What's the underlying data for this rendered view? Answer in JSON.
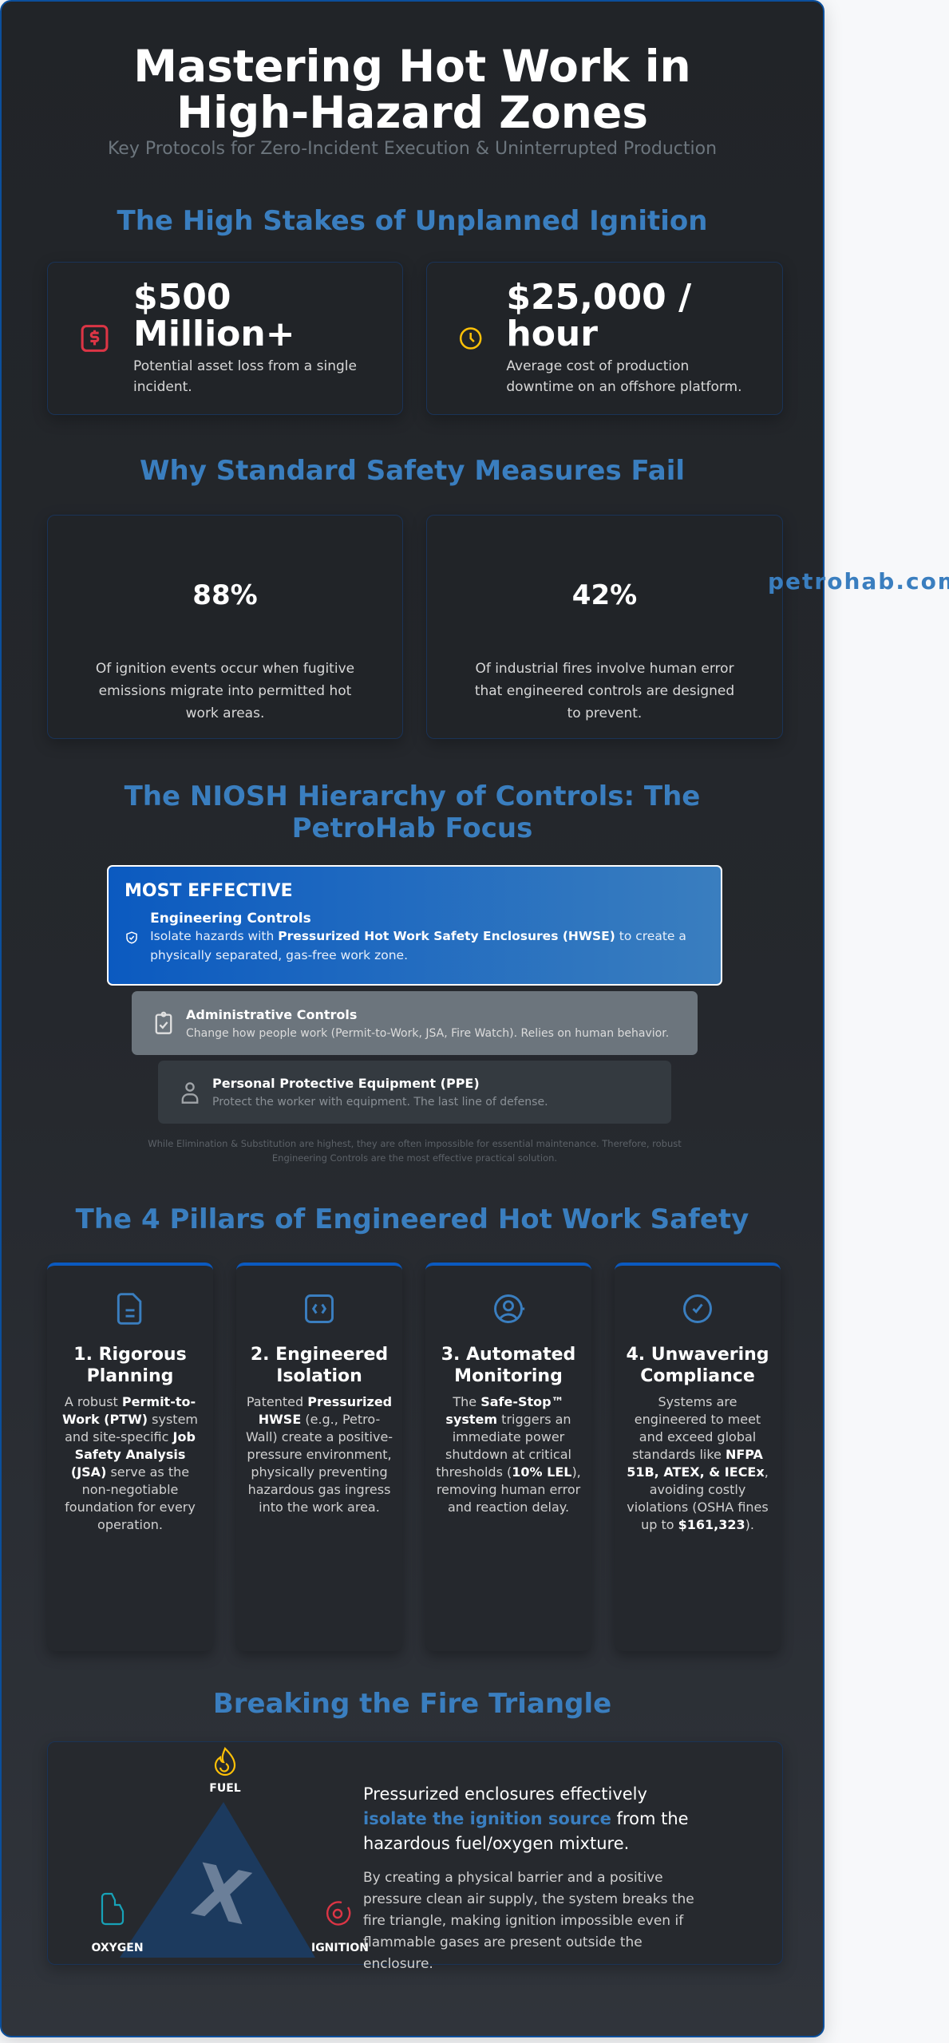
{
  "header": {
    "title": "Mastering Hot Work in High-Hazard Zones",
    "subtitle": "Key Protocols for Zero-Incident Execution & Uninterrupted Production"
  },
  "stakes": {
    "heading": "The High Stakes of Unplanned Ignition",
    "cards": [
      {
        "icon": "dollar-icon",
        "value": "$500 Million+",
        "desc": "Potential asset loss from a single incident.",
        "color": "#dc3545"
      },
      {
        "icon": "clock-icon",
        "value": "$25,000 / hour",
        "desc": "Average cost of production downtime on an offshore platform.",
        "color": "#ffc107"
      }
    ]
  },
  "fail": {
    "heading": "Why Standard Safety Measures Fail",
    "cards": [
      {
        "value": "88%",
        "desc": "Of ignition events occur when fugitive emissions migrate into permitted hot work areas."
      },
      {
        "value": "42%",
        "desc": "Of industrial fires involve human error that engineered controls are designed to prevent."
      }
    ]
  },
  "brand": "petrohab.com",
  "hierarchy": {
    "heading": "The NIOSH Hierarchy of Controls: The PetroHab Focus",
    "top_label": "MOST EFFECTIVE",
    "engineering": {
      "title": "Engineering Controls",
      "pre": "Isolate hazards with ",
      "bold": "Pressurized Hot Work Safety Enclosures (HWSE)",
      "post": " to create a physically separated, gas-free work zone."
    },
    "admin": {
      "title": "Administrative Controls",
      "desc": "Change how people work (Permit-to-Work, JSA, Fire Watch). Relies on human behavior."
    },
    "ppe": {
      "title": "Personal Protective Equipment (PPE)",
      "desc": "Protect the worker with equipment. The last line of defense."
    },
    "note": "While Elimination & Substitution are highest, they are often impossible for essential maintenance. Therefore, robust Engineering Controls are the most effective practical solution."
  },
  "pillars": {
    "heading": "The 4 Pillars of Engineered Hot Work Safety",
    "items": [
      {
        "icon": "document-icon",
        "title": "1. Rigorous Planning",
        "parts": [
          "A robust ",
          "Permit-to-Work (PTW)",
          " system and site-specific ",
          "Job Safety Analysis (JSA)",
          " serve as the non-negotiable foundation for every operation."
        ]
      },
      {
        "icon": "code-box-icon",
        "title": "2. Engineered Isolation",
        "parts": [
          "Patented ",
          "Pressurized HWSE",
          " (e.g., Petro-Wall) create a positive-pressure environment, physically preventing hazardous gas ingress into the work area.",
          "",
          ""
        ]
      },
      {
        "icon": "user-monitor-icon",
        "title": "3. Automated Monitoring",
        "parts": [
          "The ",
          "Safe-Stop™ system",
          " triggers an immediate power shutdown at critical thresholds (",
          "10% LEL",
          "), removing human error and reaction delay."
        ]
      },
      {
        "icon": "check-circle-icon",
        "title": "4. Unwavering Compliance",
        "parts": [
          "Systems are engineered to meet and exceed global standards like ",
          "NFPA 51B, ATEX, & IECEx",
          ", avoiding costly violations (OSHA fines up to ",
          "$161,323",
          "). "
        ]
      }
    ]
  },
  "triangle": {
    "heading": "Breaking the Fire Triangle",
    "fuel": "FUEL",
    "oxygen": "OXYGEN",
    "ignition": "IGNITION",
    "mark": "X",
    "lead_pre": "Pressurized enclosures effectively ",
    "lead_hl": "isolate the ignition source",
    "lead_post": " from the hazardous fuel/oxygen mixture.",
    "body": "By creating a physical barrier and a positive pressure clean air supply, the system breaks the fire triangle, making ignition impossible even if flammable gases are present outside the enclosure."
  },
  "colors": {
    "accent": "#3a7ebf",
    "primary": "#0b5ac0",
    "danger": "#dc3545",
    "warning": "#ffc107",
    "teal": "#17a2b8"
  }
}
